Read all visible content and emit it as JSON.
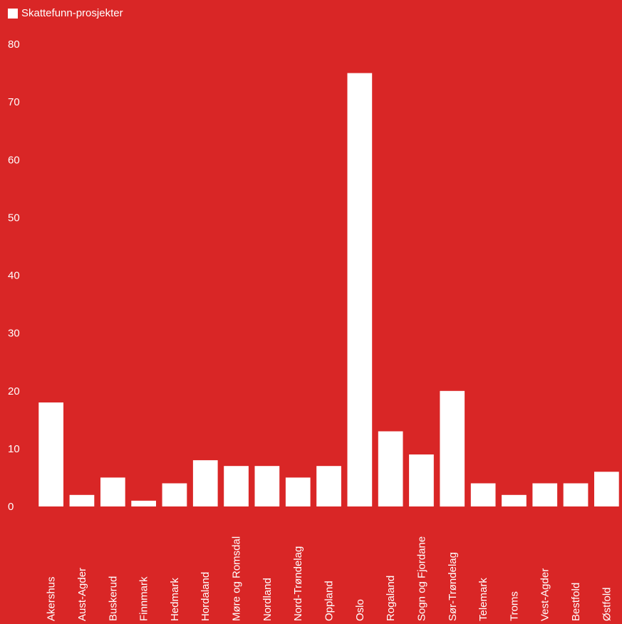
{
  "chart_data": {
    "type": "bar",
    "legend_position": "top-left",
    "grid": false,
    "series": [
      {
        "name": "Skattefunn-prosjekter",
        "color": "#ffffff",
        "values": [
          18,
          2,
          5,
          1,
          4,
          8,
          7,
          7,
          5,
          7,
          75,
          13,
          9,
          20,
          4,
          2,
          4,
          4,
          6
        ]
      }
    ],
    "categories": [
      "Akershus",
      "Aust-Agder",
      "Buskerud",
      "Finnmark",
      "Hedmark",
      "Hordaland",
      "Møre og Romsdal",
      "Nordland",
      "Nord-Trøndelag",
      "Oppland",
      "Oslo",
      "Rogaland",
      "Sogn og Fjordane",
      "Sør-Trøndelag",
      "Telemark",
      "Troms",
      "Vest-Agder",
      "Bestfold",
      "Østfold"
    ],
    "ylim": [
      0,
      80
    ],
    "yticks": [
      "0",
      "10",
      "20",
      "30",
      "40",
      "50",
      "60",
      "70",
      "80"
    ],
    "background_color": "#d92626",
    "bar_color": "#ffffff"
  }
}
